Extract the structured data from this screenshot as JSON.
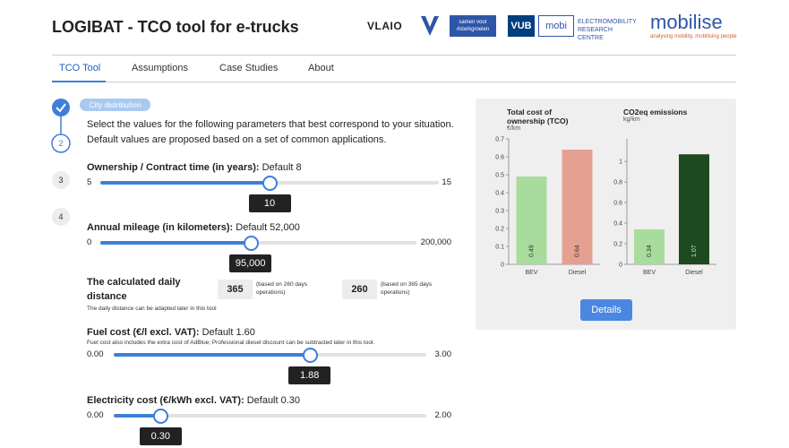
{
  "header": {
    "title": "LOGIBAT - TCO tool for e-trucks",
    "logos": {
      "vlaio": "VLAIO",
      "vlaio_tagline": "samen voor #sterkgroeien",
      "vub": "VUB",
      "mobi": "mobi",
      "erc": "ELECTROMOBILITY RESEARCH CENTRE",
      "mobilise": "mobilise",
      "mobilise_tagline": "analysing mobility, mobilising people"
    }
  },
  "nav": {
    "items": [
      "TCO Tool",
      "Assumptions",
      "Case Studies",
      "About"
    ],
    "active": 0
  },
  "steps": [
    "2",
    "3",
    "4"
  ],
  "form": {
    "badge": "City distribution",
    "intro": [
      "Select the values for the following parameters that best correspond to your situation.",
      "Default values are proposed based on a set of common applications."
    ],
    "sliders": [
      {
        "label": "Ownership / Contract time (in years):",
        "default": "Default 8",
        "min": 5,
        "max": 15,
        "value": 10
      },
      {
        "label": "Annual mileage (in kilometers):",
        "default": "Default 52,000",
        "min": 0,
        "max": {
          "value": 200000,
          "label": "200,000"
        },
        "value": {
          "value": 95000,
          "label": "95,000"
        }
      },
      {
        "label": "Fuel cost (€/l excl. VAT):",
        "default": "Default 1.60",
        "note": "Fuel cost also includes the extra cost of AdBlue; Professional diesel discount can be subtracted later in this tool.",
        "min": {
          "value": 0,
          "label": "0.00"
        },
        "max": {
          "value": 3,
          "label": "3.00"
        },
        "value": 1.88
      },
      {
        "label": "Electricity cost (€/kWh excl. VAT):",
        "default": "Default 0.30",
        "min": {
          "value": 0,
          "label": "0.00"
        },
        "max": {
          "value": 2,
          "label": "2.00"
        },
        "value": {
          "value": 0.3,
          "label": "0.30"
        }
      }
    ],
    "daily": {
      "title": "The calculated daily distance",
      "note": "The daily distance can be adapted later in this tool",
      "boxes": [
        {
          "value": 365,
          "note": "(based on 260 days operations)"
        },
        {
          "value": 260,
          "note": "(based on 365 days operations)"
        }
      ]
    }
  },
  "chart_data": [
    {
      "type": "bar",
      "title": "Total cost of ownership (TCO)",
      "unit": "€/km",
      "categories": [
        "BEV",
        "Diesel"
      ],
      "values": [
        0.49,
        0.64
      ],
      "colors": [
        "#a9dc9c",
        "#e6a091"
      ],
      "ylim": [
        0,
        0.7
      ],
      "yticks": [
        0,
        0.1,
        0.2,
        0.3,
        0.4,
        0.5,
        0.6,
        0.7
      ]
    },
    {
      "type": "bar",
      "title": "CO2eq emissions",
      "unit": "kg/km",
      "categories": [
        "BEV",
        "Diesel"
      ],
      "values": [
        0.34,
        1.07
      ],
      "colors": [
        "#a9dc9c",
        "#1d4a1f"
      ],
      "ylim": [
        0,
        1.22
      ],
      "yticks": [
        0,
        0.2,
        0.4,
        0.6,
        0.8,
        1
      ]
    }
  ],
  "details_button": "Details"
}
